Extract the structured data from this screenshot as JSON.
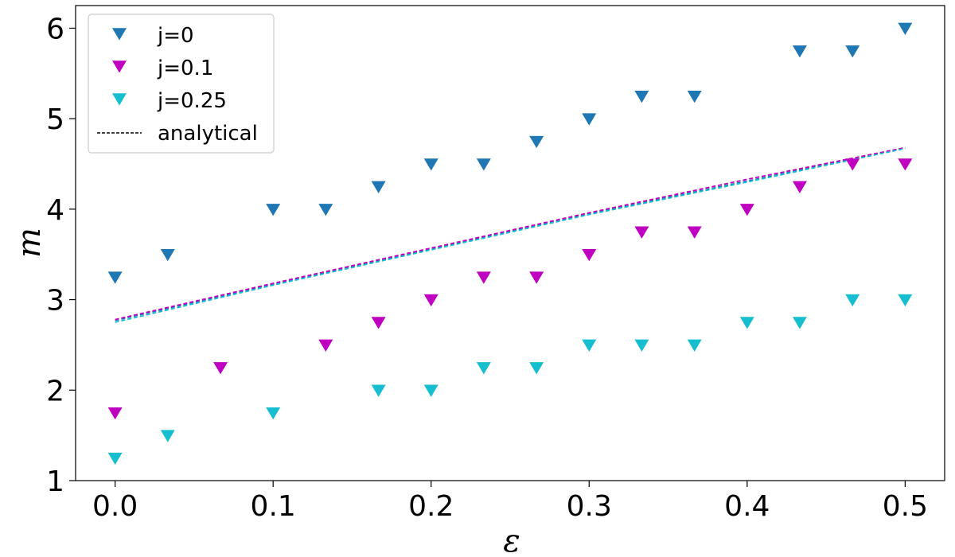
{
  "chart_data": {
    "type": "scatter",
    "title": "",
    "xlabel": "ε",
    "ylabel": "m",
    "xlim": [
      -0.025,
      0.525
    ],
    "ylim": [
      1.0,
      6.25
    ],
    "xticks": [
      "0.0",
      "0.1",
      "0.2",
      "0.3",
      "0.4",
      "0.5"
    ],
    "xtick_values": [
      0.0,
      0.1,
      0.2,
      0.3,
      0.4,
      0.5
    ],
    "yticks": [
      "1",
      "2",
      "3",
      "4",
      "5",
      "6"
    ],
    "ytick_values": [
      1,
      2,
      3,
      4,
      5,
      6
    ],
    "grid": false,
    "legend_position": "top-left",
    "series": [
      {
        "name": "j=0",
        "color": "#1f77b4",
        "marker": "triangle-down",
        "x": [
          0.0,
          0.0333,
          0.1,
          0.1333,
          0.1667,
          0.2,
          0.2333,
          0.2667,
          0.3,
          0.3333,
          0.3667,
          0.4333,
          0.4667,
          0.5
        ],
        "y": [
          3.25,
          3.5,
          4.0,
          4.0,
          4.25,
          4.5,
          4.5,
          4.75,
          5.0,
          5.25,
          5.25,
          5.75,
          5.75,
          6.0
        ]
      },
      {
        "name": "j=0.1",
        "color": "#c000c0",
        "marker": "triangle-down",
        "x": [
          0.0,
          0.0667,
          0.1333,
          0.1667,
          0.2,
          0.2333,
          0.2667,
          0.3,
          0.3333,
          0.3667,
          0.4,
          0.4333,
          0.4667,
          0.5
        ],
        "y": [
          1.75,
          2.25,
          2.5,
          2.75,
          3.0,
          3.25,
          3.25,
          3.5,
          3.75,
          3.75,
          4.0,
          4.25,
          4.5,
          4.5
        ]
      },
      {
        "name": "j=0.25",
        "color": "#17becf",
        "marker": "triangle-down",
        "x": [
          0.0,
          0.0333,
          0.1,
          0.1667,
          0.2,
          0.2333,
          0.2667,
          0.3,
          0.3333,
          0.3667,
          0.4,
          0.4333,
          0.4667,
          0.5
        ],
        "y": [
          1.25,
          1.5,
          1.75,
          2.0,
          2.0,
          2.25,
          2.25,
          2.5,
          2.5,
          2.5,
          2.75,
          2.75,
          3.0,
          3.0
        ]
      }
    ],
    "analytical": {
      "name": "analytical",
      "legend_color": "#000000",
      "lines": [
        {
          "color": "#1f77b4",
          "x": [
            0.0,
            0.1,
            0.2,
            0.3,
            0.4,
            0.5
          ],
          "y": [
            2.77,
            3.17,
            3.56,
            3.95,
            4.31,
            4.68
          ]
        },
        {
          "color": "#c000c0",
          "x": [
            0.0,
            0.1,
            0.2,
            0.3,
            0.4,
            0.5
          ],
          "y": [
            2.78,
            3.18,
            3.57,
            3.96,
            4.33,
            4.68
          ]
        },
        {
          "color": "#17becf",
          "x": [
            0.0,
            0.1,
            0.2,
            0.3,
            0.4,
            0.5
          ],
          "y": [
            2.75,
            3.16,
            3.55,
            3.94,
            4.3,
            4.67
          ]
        }
      ]
    }
  }
}
